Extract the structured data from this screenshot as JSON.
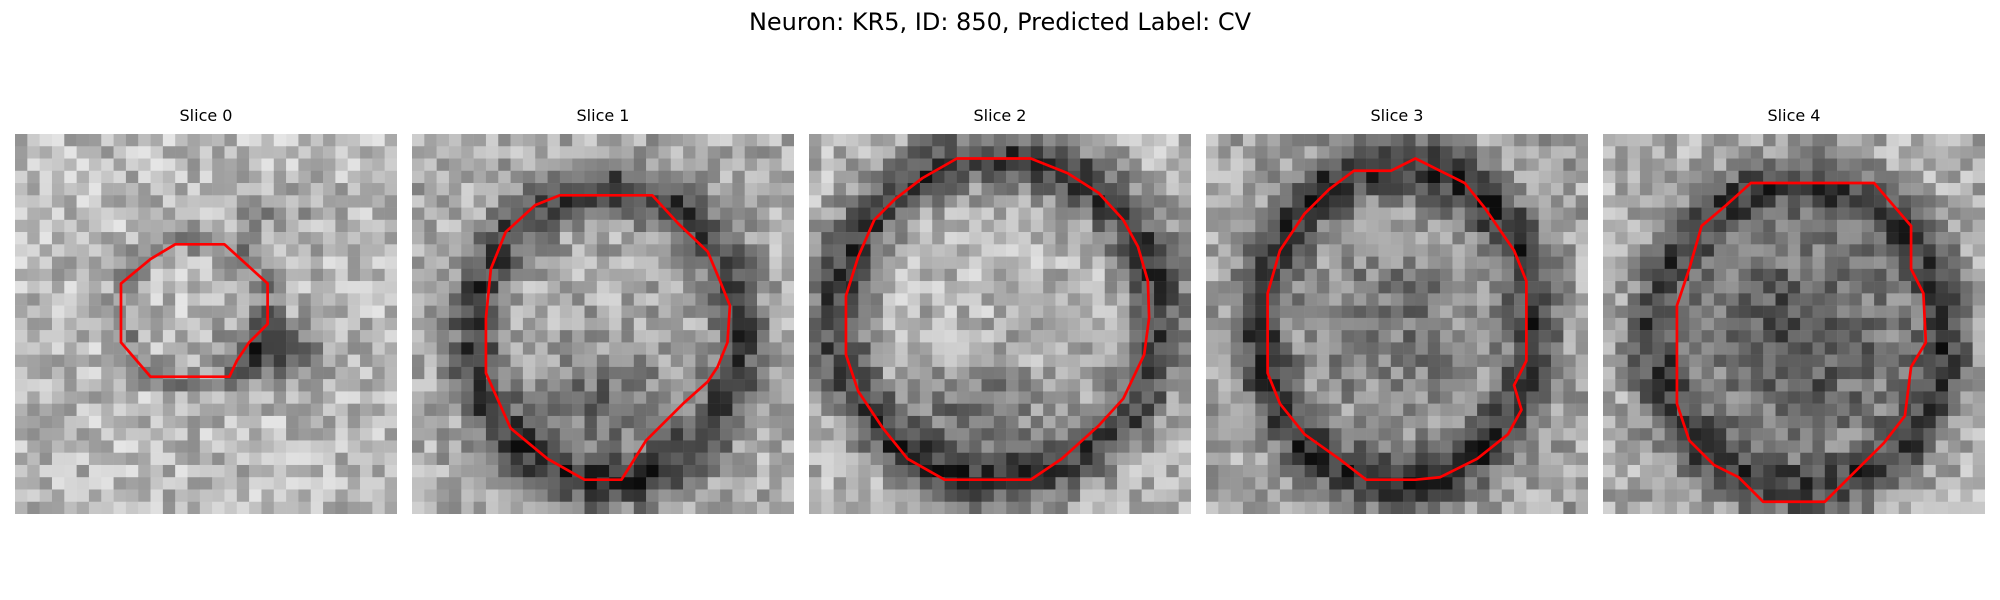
{
  "figure": {
    "title": "Neuron: KR5, ID: 850, Predicted Label: CV"
  },
  "panels": [
    {
      "title": "Slice 0"
    },
    {
      "title": "Slice 1"
    },
    {
      "title": "Slice 2"
    },
    {
      "title": "Slice 3"
    },
    {
      "title": "Slice 4"
    }
  ],
  "colors": {
    "contour": "#ff0000",
    "background": "#ffffff"
  }
}
